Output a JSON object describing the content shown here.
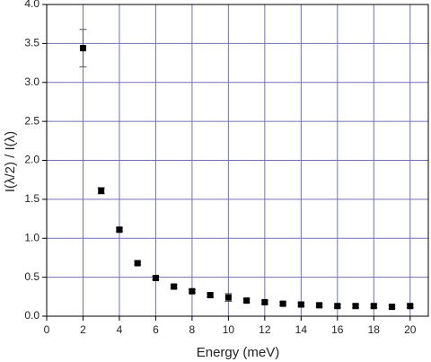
{
  "chart_data": {
    "type": "scatter",
    "x_label": "Energy (meV)",
    "y_label": "I(λ/2) / I(λ)",
    "x": [
      2,
      3,
      4,
      5,
      6,
      7,
      8,
      9,
      10,
      11,
      12,
      13,
      14,
      15,
      16,
      17,
      18,
      19,
      20
    ],
    "values": [
      3.44,
      1.61,
      1.11,
      0.68,
      0.49,
      0.38,
      0.32,
      0.27,
      0.24,
      0.2,
      0.18,
      0.16,
      0.15,
      0.14,
      0.13,
      0.13,
      0.13,
      0.12,
      0.13
    ],
    "errors": [
      0.24,
      0.04,
      0.02,
      0.02,
      0.02,
      0.02,
      0.02,
      0.02,
      0.05,
      0.02,
      0.02,
      0.02,
      0.02,
      0.02,
      0.02,
      0.02,
      0.02,
      0.02,
      0.02
    ],
    "color": "#000000",
    "grid": true,
    "grid_color": "#7070b8",
    "xlim": [
      0,
      21
    ],
    "ylim": [
      0,
      4
    ],
    "xticks": [
      0,
      2,
      4,
      6,
      8,
      10,
      12,
      14,
      16,
      18,
      20
    ],
    "yticks": [
      {
        "value": 0,
        "label": "0.0"
      },
      0.5,
      {
        "value": 1,
        "label": "1.0"
      },
      1.5,
      {
        "value": 2,
        "label": "2.0"
      },
      2.5,
      {
        "value": 3,
        "label": "3.0"
      },
      3.5,
      {
        "value": 4,
        "label": "4.0"
      }
    ]
  }
}
